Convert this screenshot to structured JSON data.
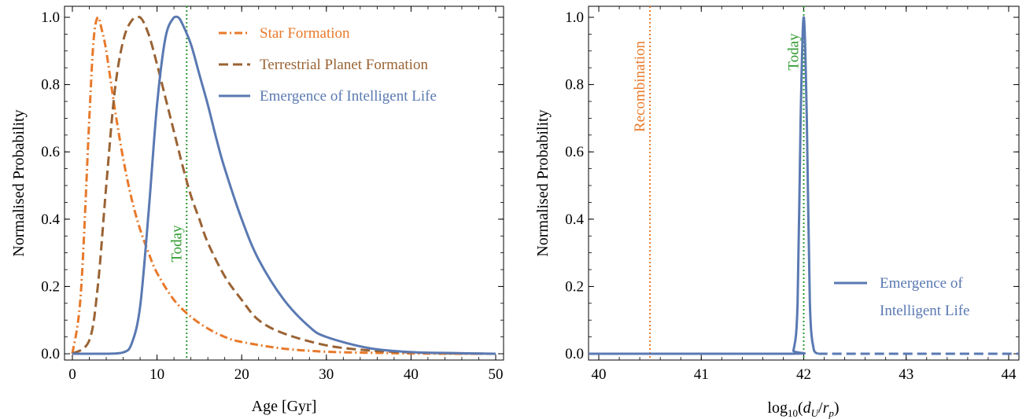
{
  "chart_data": [
    {
      "type": "line",
      "title": "",
      "xlabel": "Age [Gyr]",
      "ylabel": "Normalised Probability",
      "xlim": [
        0,
        50
      ],
      "ylim": [
        0,
        1.0
      ],
      "x_ticks": [
        "0",
        "10",
        "20",
        "30",
        "40",
        "50"
      ],
      "y_ticks": [
        "0.0",
        "0.2",
        "0.4",
        "0.6",
        "0.8",
        "1.0"
      ],
      "legend_position": "top-right",
      "series": [
        {
          "name": "Star Formation",
          "color": "#e8792a",
          "style": "dash-dot",
          "x": [
            0,
            1,
            2,
            2.5,
            3,
            3.5,
            4,
            5,
            6,
            7,
            8,
            9,
            10,
            12,
            14,
            16,
            18,
            20,
            25,
            30,
            35,
            40,
            45,
            50
          ],
          "y": [
            0.0,
            0.18,
            0.7,
            0.93,
            1.0,
            0.96,
            0.9,
            0.73,
            0.58,
            0.46,
            0.37,
            0.3,
            0.24,
            0.16,
            0.11,
            0.075,
            0.05,
            0.035,
            0.015,
            0.006,
            0.003,
            0.001,
            0.0,
            0.0
          ]
        },
        {
          "name": "Terrestrial Planet Formation",
          "color": "#9a6334",
          "style": "dashed",
          "x": [
            0,
            2,
            3,
            4,
            5,
            6,
            7,
            8,
            9,
            10,
            11,
            12,
            13,
            14,
            15,
            16,
            18,
            20,
            22,
            25,
            30,
            35,
            40,
            45,
            50
          ],
          "y": [
            0.0,
            0.04,
            0.2,
            0.5,
            0.78,
            0.93,
            0.99,
            1.0,
            0.95,
            0.86,
            0.76,
            0.66,
            0.56,
            0.47,
            0.4,
            0.33,
            0.23,
            0.16,
            0.1,
            0.06,
            0.025,
            0.01,
            0.004,
            0.001,
            0.0
          ]
        },
        {
          "name": "Emergence of Intelligent Life",
          "color": "#5a79b2",
          "style": "solid",
          "x": [
            0,
            4,
            6,
            7,
            8,
            9,
            10,
            11,
            12,
            12.5,
            13,
            14,
            15,
            16,
            17,
            18,
            20,
            22,
            25,
            28,
            30,
            35,
            40,
            45,
            50
          ],
          "y": [
            0.0,
            0.0,
            0.004,
            0.03,
            0.14,
            0.42,
            0.74,
            0.94,
            1.0,
            1.0,
            0.98,
            0.92,
            0.83,
            0.74,
            0.64,
            0.55,
            0.4,
            0.28,
            0.16,
            0.08,
            0.05,
            0.017,
            0.005,
            0.002,
            0.0
          ]
        }
      ],
      "annotations": [
        {
          "label": "Today",
          "x": 13.5,
          "color": "#2f9a2f",
          "style": "dotted"
        }
      ]
    },
    {
      "type": "line",
      "title": "",
      "xlabel": "log10(dU/rp)",
      "ylabel": "Normalised Probability",
      "xlim": [
        39.9,
        44.1
      ],
      "ylim": [
        0,
        1.0
      ],
      "x_ticks": [
        "40",
        "41",
        "42",
        "43",
        "44"
      ],
      "y_ticks": [
        "0.0",
        "0.2",
        "0.4",
        "0.6",
        "0.8",
        "1.0"
      ],
      "legend_position": "center-right",
      "series": [
        {
          "name": "Emergence of Intelligent Life",
          "color": "#5a79b2",
          "style": "solid",
          "x": [
            39.9,
            41.85,
            41.9,
            41.94,
            41.97,
            42.0,
            42.03,
            42.06,
            42.1,
            42.14
          ],
          "y": [
            0.0,
            0.0,
            0.01,
            0.15,
            0.7,
            1.0,
            0.7,
            0.15,
            0.01,
            0.0
          ]
        },
        {
          "name": "",
          "color": "#5a79b2",
          "style": "dashed",
          "x": [
            42.14,
            44.1
          ],
          "y": [
            0.0,
            0.0
          ]
        }
      ],
      "legend": [
        {
          "line1": "Emergence of",
          "line2": "Intelligent Life",
          "color": "#5a79b2"
        }
      ],
      "annotations": [
        {
          "label": "Recombination",
          "x": 40.5,
          "color": "#e8792a",
          "style": "dotted"
        },
        {
          "label": "Today",
          "x": 42.0,
          "color": "#2f9a2f",
          "style": "dotted"
        }
      ]
    }
  ]
}
